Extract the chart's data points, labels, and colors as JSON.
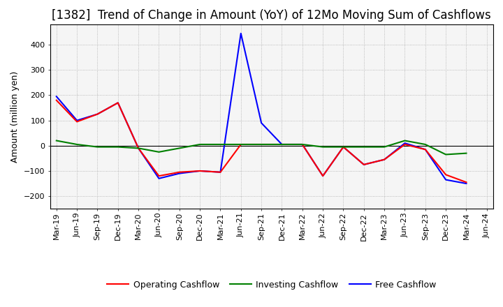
{
  "title": "[1382]  Trend of Change in Amount (YoY) of 12Mo Moving Sum of Cashflows",
  "ylabel": "Amount (million yen)",
  "background_color": "#ffffff",
  "plot_bg_color": "#f5f5f5",
  "grid_color": "#aaaaaa",
  "x_labels": [
    "Mar-19",
    "Jun-19",
    "Sep-19",
    "Dec-19",
    "Mar-20",
    "Jun-20",
    "Sep-20",
    "Dec-20",
    "Mar-21",
    "Jun-21",
    "Sep-21",
    "Dec-21",
    "Mar-22",
    "Jun-22",
    "Sep-22",
    "Dec-22",
    "Mar-23",
    "Jun-23",
    "Sep-23",
    "Dec-23",
    "Mar-24",
    "Jun-24"
  ],
  "operating": [
    180,
    95,
    125,
    170,
    -10,
    -120,
    -105,
    -100,
    -105,
    5,
    5,
    5,
    5,
    -120,
    -5,
    -75,
    -55,
    5,
    -15,
    -115,
    -145,
    null
  ],
  "investing": [
    20,
    5,
    -5,
    -5,
    -10,
    -25,
    -10,
    5,
    5,
    5,
    5,
    5,
    5,
    -5,
    -5,
    -5,
    -5,
    20,
    5,
    -35,
    -30,
    null
  ],
  "free": [
    195,
    100,
    125,
    170,
    -10,
    -130,
    -110,
    -100,
    -105,
    445,
    90,
    5,
    5,
    -120,
    -5,
    -75,
    -55,
    10,
    -15,
    -135,
    -150,
    null
  ],
  "ylim": [
    -250,
    480
  ],
  "yticks": [
    -200,
    -100,
    0,
    100,
    200,
    300,
    400
  ],
  "op_color": "#ff0000",
  "inv_color": "#008000",
  "free_color": "#0000ff",
  "linewidth": 1.5,
  "title_fontsize": 12,
  "axis_fontsize": 9,
  "tick_fontsize": 8,
  "legend_fontsize": 9
}
